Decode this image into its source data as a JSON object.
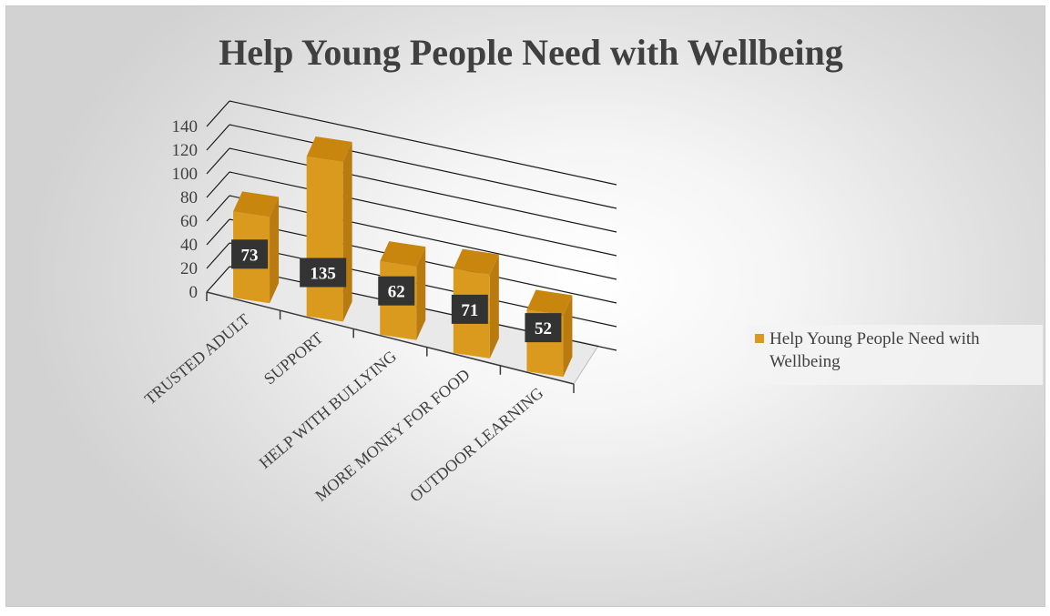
{
  "chart_data": {
    "type": "bar",
    "style": "3d-column",
    "title": "Help Young People Need with Wellbeing",
    "categories": [
      "TRUSTED ADULT",
      "SUPPORT",
      "HELP WITH BULLYING",
      "MORE MONEY FOR FOOD",
      "OUTDOOR LEARNING"
    ],
    "series": [
      {
        "name": "Help Young People Need with Wellbeing",
        "values": [
          73,
          135,
          62,
          71,
          52
        ]
      }
    ],
    "ylim": [
      0,
      140
    ],
    "yticks": [
      "0",
      "20",
      "40",
      "60",
      "80",
      "100",
      "120",
      "140"
    ],
    "data_labels": [
      "73",
      "135",
      "62",
      "71",
      "52"
    ],
    "legend": {
      "position": "right",
      "lines": [
        "Help Young People Need with",
        "Wellbeing"
      ]
    },
    "grid": true,
    "colors": {
      "bar": "#d99a1e",
      "bar_top": "#c8860f",
      "bar_side": "#b97a10",
      "label_bg": "#333333",
      "text": "#404040"
    }
  }
}
